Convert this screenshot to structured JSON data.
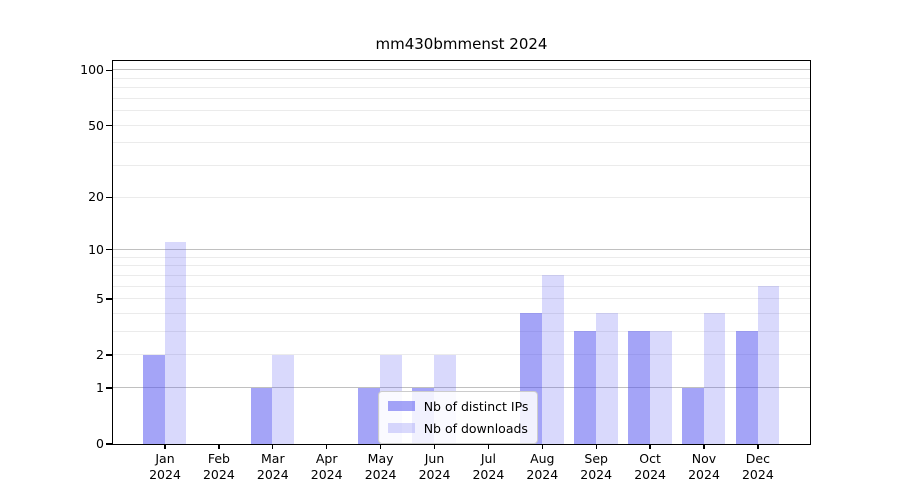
{
  "title": "mm430bmmenst 2024",
  "chart_data": {
    "type": "bar",
    "title": "mm430bmmenst 2024",
    "categories": [
      "Jan 2024",
      "Feb 2024",
      "Mar 2024",
      "Apr 2024",
      "May 2024",
      "Jun 2024",
      "Jul 2024",
      "Aug 2024",
      "Sep 2024",
      "Oct 2024",
      "Nov 2024",
      "Dec 2024"
    ],
    "series": [
      {
        "name": "Nb of distinct IPs",
        "values": [
          2,
          0,
          1,
          0,
          1,
          1,
          0,
          4,
          3,
          3,
          1,
          3
        ],
        "base_color": "#5050f0",
        "alpha": 0.52,
        "rendered_color": "#a9a9f7"
      },
      {
        "name": "Nb of downloads",
        "values": [
          11,
          0,
          2,
          0,
          2,
          2,
          0,
          7,
          4,
          3,
          4,
          6
        ],
        "base_color": "#5050f0",
        "alpha": 0.22,
        "rendered_color": "#dadaf9"
      }
    ],
    "yscale": "log1p",
    "ylim": [
      0,
      112
    ],
    "xlabel": "",
    "ylabel": "",
    "y_tick_labels": [
      0,
      1,
      2,
      5,
      10,
      20,
      50,
      100
    ],
    "y_major_gridlines": [
      1,
      10,
      100
    ],
    "y_minor_gridlines": [
      2,
      3,
      4,
      5,
      6,
      7,
      8,
      9,
      20,
      30,
      40,
      50,
      60,
      70,
      80,
      90
    ],
    "grid": true,
    "legend_position": "lower center"
  },
  "colors": {
    "major_grid": "#c0c0c0",
    "minor_grid": "#ebebeb",
    "axis": "#000000",
    "background": "#ffffff"
  }
}
